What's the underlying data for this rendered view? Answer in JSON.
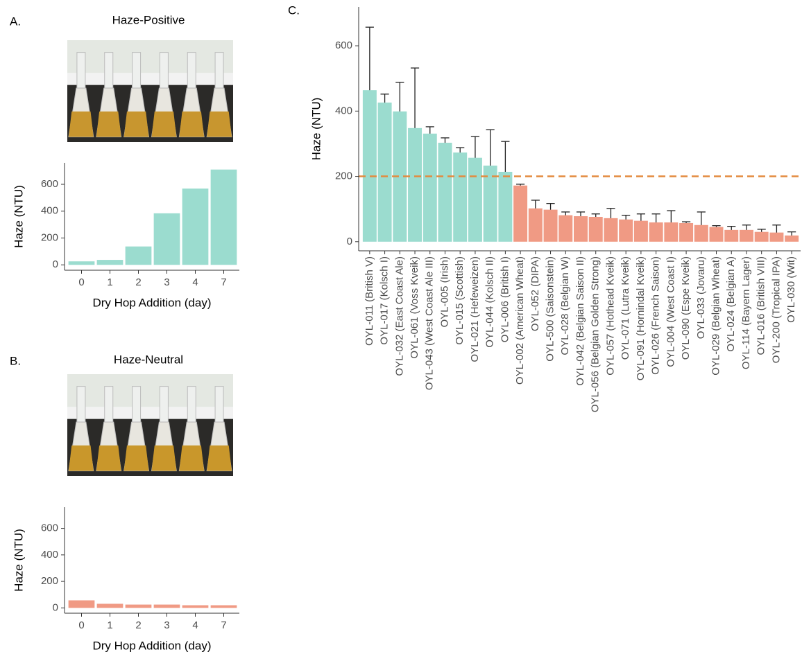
{
  "chart_data": [
    {
      "type": "bar",
      "panel_label": "A.",
      "title": "Haze-Positive",
      "x_label": "Dry Hop Addition (day)",
      "y_label": "Haze (NTU)",
      "categories": [
        "0",
        "1",
        "2",
        "3",
        "4",
        "7"
      ],
      "values": [
        26,
        37,
        137,
        384,
        568,
        710
      ],
      "color": "#9bdccf",
      "ylim": [
        -40,
        760
      ],
      "yticks": [
        0,
        200,
        400,
        600
      ]
    },
    {
      "type": "bar",
      "panel_label": "B.",
      "title": "Haze-Neutral",
      "x_label": "Dry Hop Addition (day)",
      "y_label": "Haze (NTU)",
      "categories": [
        "0",
        "1",
        "2",
        "3",
        "4",
        "7"
      ],
      "values": [
        57,
        31,
        25,
        25,
        20,
        20
      ],
      "color": "#f09a84",
      "ylim": [
        -40,
        760
      ],
      "yticks": [
        0,
        200,
        400,
        600
      ]
    },
    {
      "type": "bar",
      "panel_label": "C.",
      "y_label": "Haze (NTU)",
      "categories": [
        "OYL-011 (British V)",
        "OYL-017 (Kolsch I)",
        "OYL-032 (East Coast Ale)",
        "OYL-061 (Voss Kveik)",
        "OYL-043 (West Coast Ale III)",
        "OYL-005 (Irish)",
        "OYL-015 (Scottish)",
        "OYL-021 (Hefeweizen)",
        "OYL-044 (Kolsch II)",
        "OYL-006 (British I)",
        "OYL-002 (American Wheat)",
        "OYL-052 (DIPA)",
        "OYL-500 (Saisonstein)",
        "OYL-028 (Belgian W)",
        "OYL-042 (Belgian Saison II)",
        "OYL-056 (Belgian Golden Strong)",
        "OYL-057 (Hothead Kveik)",
        "OYL-071 (Lutra Kveik)",
        "OYL-091 (Hornindal Kveik)",
        "OYL-026 (French Saison)",
        "OYL-004 (West Coast I)",
        "OYL-090 (Espe Kveik)",
        "OYL-033 (Jovaru)",
        "OYL-029 (Belgian Wheat)",
        "OYL-024 (Belgian A)",
        "OYL-114 (Bayern Lager)",
        "OYL-016 (British VIII)",
        "OYL-200 (Tropical IPA)",
        "OYL-030 (Wit)"
      ],
      "values": [
        464,
        426,
        399,
        348,
        331,
        303,
        273,
        257,
        233,
        214,
        172,
        102,
        98,
        81,
        78,
        76,
        72,
        68,
        64,
        59,
        59,
        57,
        51,
        45,
        36,
        36,
        30,
        28,
        19
      ],
      "errors": [
        193,
        26,
        89,
        184,
        21,
        15,
        15,
        65,
        110,
        93,
        4,
        25,
        19,
        10,
        13,
        9,
        30,
        13,
        21,
        26,
        36,
        4,
        40,
        4,
        11,
        15,
        8,
        23,
        11
      ],
      "bar_colors": [
        "#9bdccf",
        "#9bdccf",
        "#9bdccf",
        "#9bdccf",
        "#9bdccf",
        "#9bdccf",
        "#9bdccf",
        "#9bdccf",
        "#9bdccf",
        "#9bdccf",
        "#f09a84",
        "#f09a84",
        "#f09a84",
        "#f09a84",
        "#f09a84",
        "#f09a84",
        "#f09a84",
        "#f09a84",
        "#f09a84",
        "#f09a84",
        "#f09a84",
        "#f09a84",
        "#f09a84",
        "#f09a84",
        "#f09a84",
        "#f09a84",
        "#f09a84",
        "#f09a84",
        "#f09a84"
      ],
      "hline": 200,
      "hline_color": "#e38a3e",
      "ylim": [
        -28,
        719
      ],
      "yticks": [
        0,
        200,
        400,
        600
      ]
    }
  ]
}
